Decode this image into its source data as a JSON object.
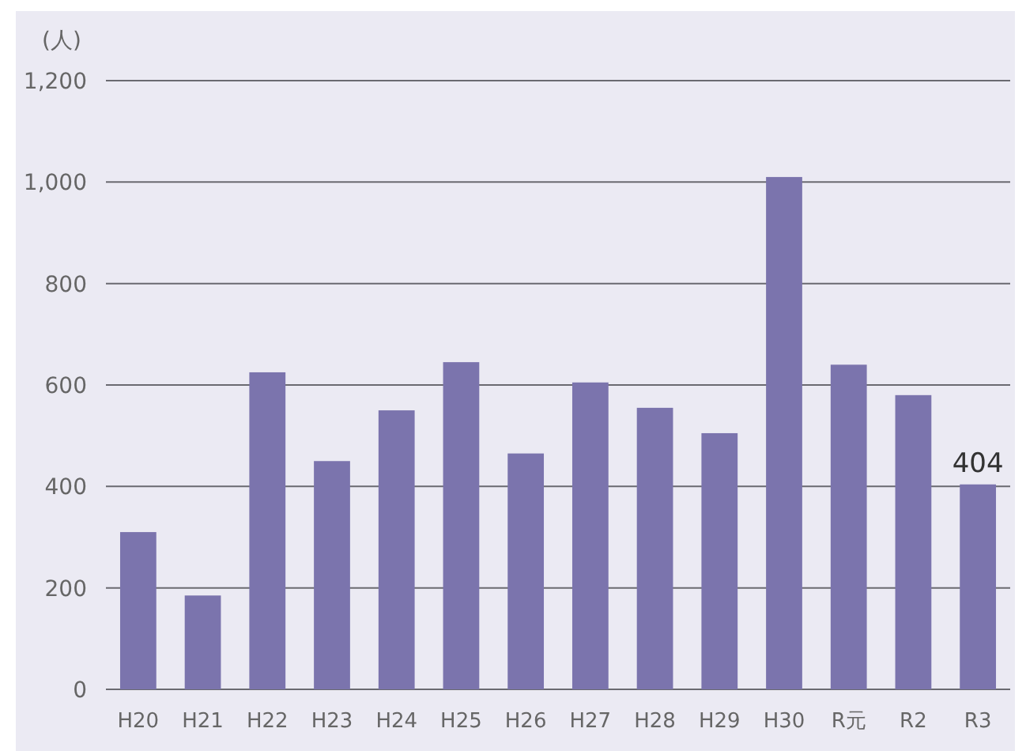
{
  "chart_data": {
    "type": "bar",
    "ylabel": "(人)",
    "categories": [
      "H20",
      "H21",
      "H22",
      "H23",
      "H24",
      "H25",
      "H26",
      "H27",
      "H28",
      "H29",
      "H30",
      "R元",
      "R2",
      "R3"
    ],
    "values": [
      310,
      185,
      625,
      450,
      550,
      645,
      465,
      605,
      555,
      505,
      1010,
      640,
      580,
      404
    ],
    "value_labels": [
      null,
      null,
      null,
      null,
      null,
      null,
      null,
      null,
      null,
      null,
      null,
      null,
      null,
      "404"
    ],
    "color": "#7b74ad",
    "ylim": [
      0,
      1200
    ],
    "yticks": [
      {
        "value": 0,
        "label": "0"
      },
      {
        "value": 200,
        "label": "200"
      },
      {
        "value": 400,
        "label": "400"
      },
      {
        "value": 600,
        "label": "600"
      },
      {
        "value": 800,
        "label": "800"
      },
      {
        "value": 1000,
        "label": "1,000"
      },
      {
        "value": 1200,
        "label": "1,200"
      }
    ],
    "grid": "y"
  }
}
